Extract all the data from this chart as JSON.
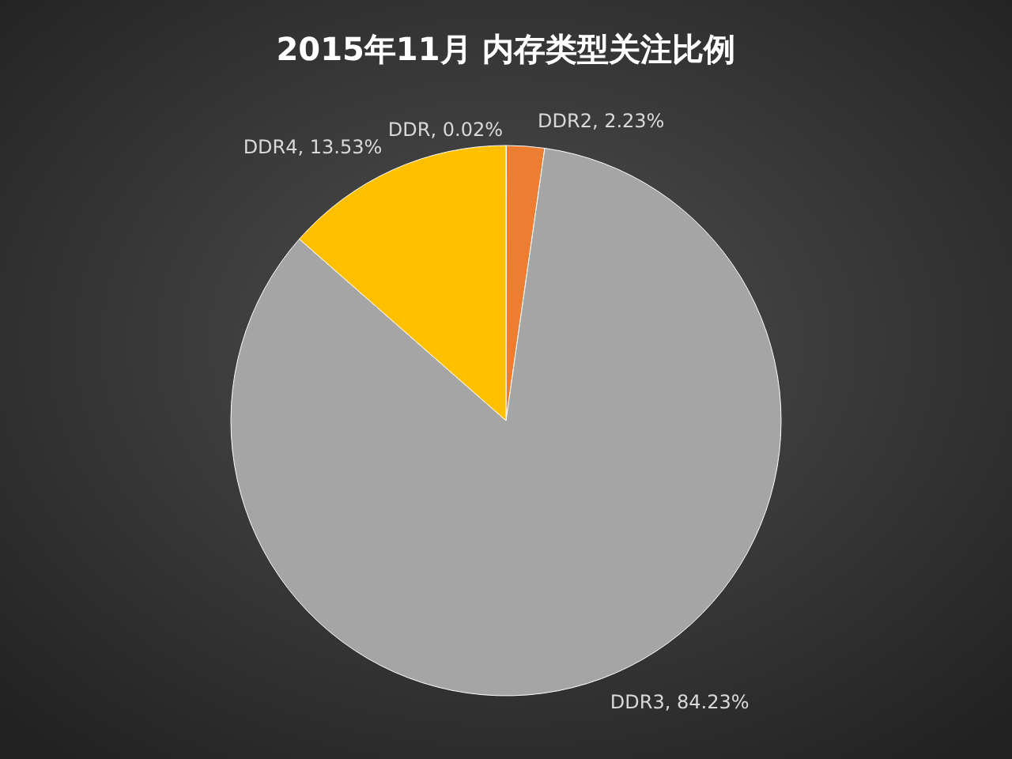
{
  "chart_data": {
    "type": "pie",
    "title": "2015年11月  内存类型关注比例",
    "categories": [
      "DDR",
      "DDR2",
      "DDR3",
      "DDR4"
    ],
    "values": [
      0.02,
      2.23,
      84.23,
      13.53
    ],
    "colors": [
      "#c0504d",
      "#ed7d31",
      "#a5a5a5",
      "#ffc000"
    ],
    "value_labels": [
      ", 0.02%",
      ", 2.23%",
      ", 84.23%",
      ", 13.53%"
    ]
  }
}
